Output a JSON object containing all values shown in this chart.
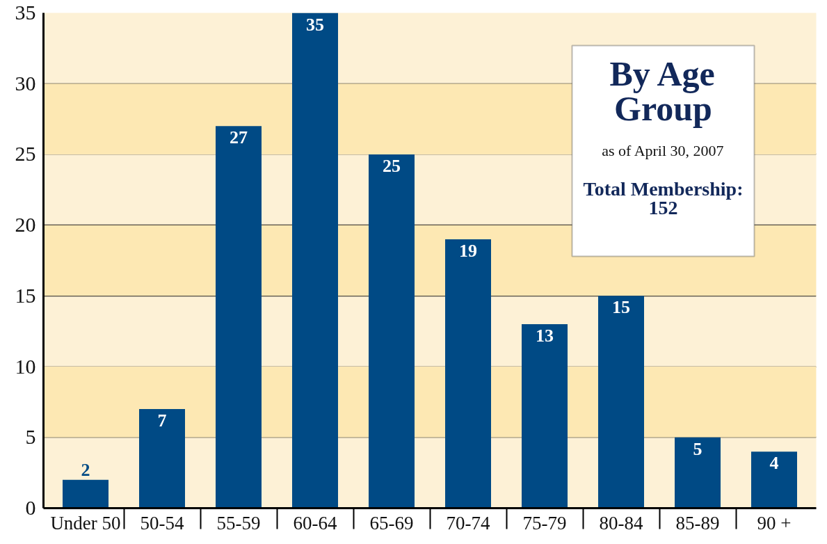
{
  "chart_data": {
    "type": "bar",
    "title": "By Age Group",
    "subtitle": "as of April 30, 2007",
    "annotations": [
      "Total Membership:\n152"
    ],
    "categories": [
      "Under 50",
      "50-54",
      "55-59",
      "60-64",
      "65-69",
      "70-74",
      "75-79",
      "80-84",
      "85-89",
      "90 +"
    ],
    "values": [
      2,
      7,
      27,
      35,
      25,
      19,
      13,
      15,
      5,
      4
    ],
    "color": "#004a85",
    "ylim": [
      0,
      35
    ],
    "yticks": [
      0,
      5,
      10,
      15,
      20,
      25,
      30,
      35
    ],
    "grid": "y",
    "data_labels": true,
    "bands": [
      {
        "axis": "y",
        "from": 5,
        "to": 10,
        "color": "#fde8b3"
      },
      {
        "axis": "y",
        "from": 15,
        "to": 20,
        "color": "#fde8b3"
      },
      {
        "axis": "y",
        "from": 25,
        "to": 30,
        "color": "#fde8b3"
      }
    ]
  }
}
